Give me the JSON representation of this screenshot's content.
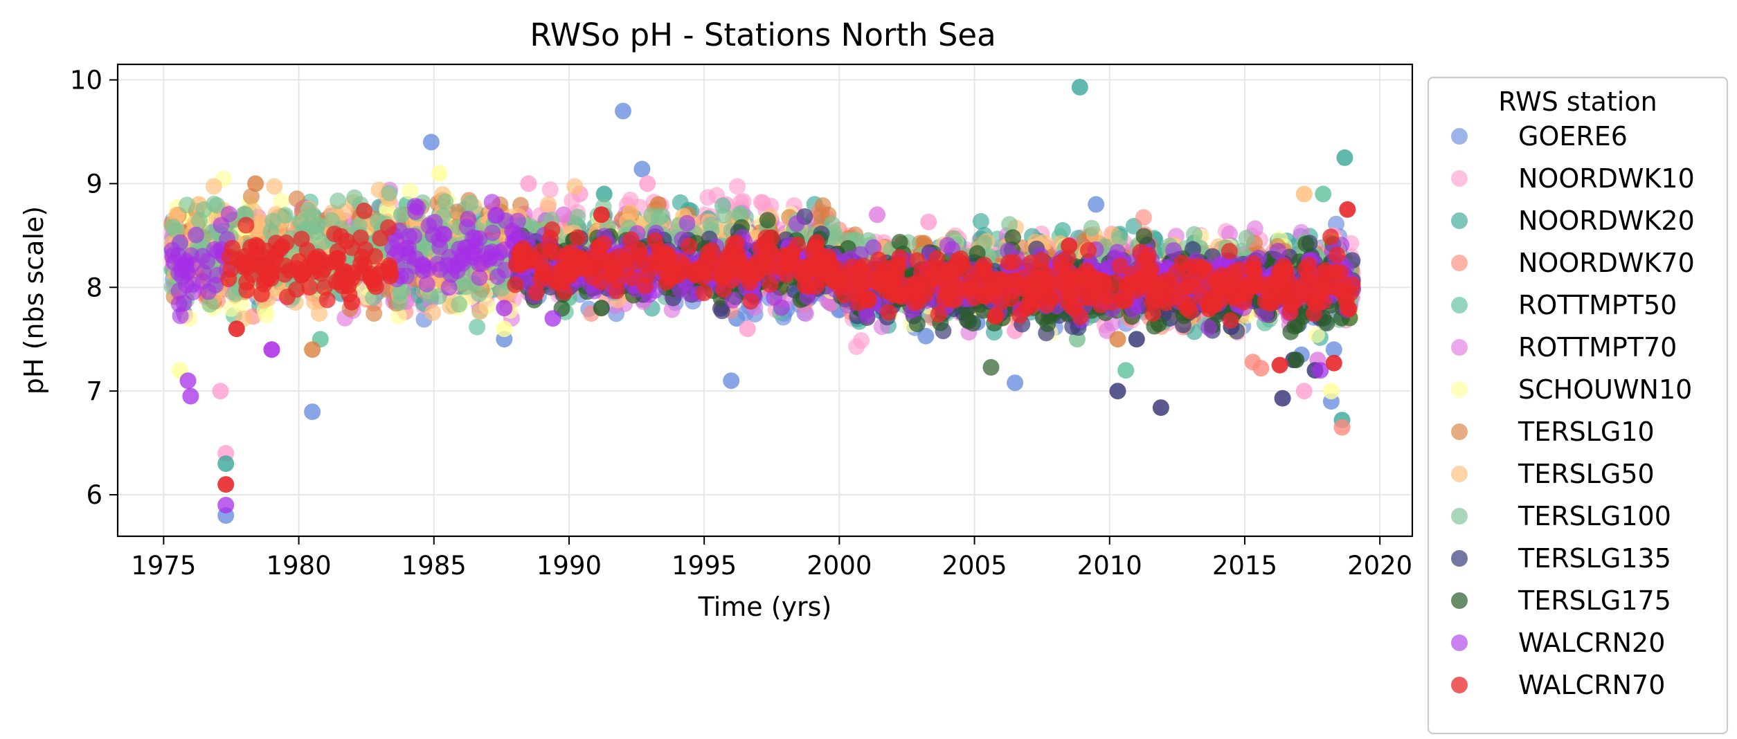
{
  "chart_data": {
    "type": "scatter",
    "title": "RWSo pH - Stations North Sea",
    "xlabel": "Time (yrs)",
    "ylabel": "pH (nbs scale)",
    "xlim": [
      1973.3,
      2021.2
    ],
    "ylim": [
      5.6,
      10.15
    ],
    "xticks": [
      1975,
      1980,
      1985,
      1990,
      1995,
      2000,
      2005,
      2010,
      2015,
      2020
    ],
    "yticks": [
      6,
      7,
      8,
      9,
      10
    ],
    "grid": true,
    "legend": {
      "title": "RWS station",
      "placement": "outside right"
    },
    "series": [
      {
        "name": "GOERE6",
        "color": "#6a8ee0",
        "alpha": 0.65,
        "segments": [
          [
            1975.3,
            1984.5,
            8.25,
            0.15
          ],
          [
            1984.5,
            1996.5,
            8.2,
            0.13
          ],
          [
            1996.5,
            2016.0,
            8.0,
            0.13
          ],
          [
            2016.0,
            2019.0,
            8.05,
            0.2
          ]
        ],
        "outliers": [
          [
            1977.3,
            5.8
          ],
          [
            1980.5,
            6.8
          ],
          [
            1984.9,
            9.4
          ],
          [
            1987.6,
            7.5
          ],
          [
            1992.0,
            9.7
          ],
          [
            1992.7,
            9.14
          ],
          [
            1996.0,
            7.1
          ],
          [
            1996.2,
            7.7
          ],
          [
            2003.2,
            7.53
          ],
          [
            2005.1,
            7.66
          ],
          [
            2006.5,
            7.08
          ],
          [
            2009.5,
            8.8
          ],
          [
            2018.2,
            6.9
          ],
          [
            2018.3,
            7.4
          ],
          [
            2017.1,
            7.35
          ]
        ]
      },
      {
        "name": "NOORDWK10",
        "color": "#ff9fd0",
        "alpha": 0.65,
        "segments": [
          [
            1975.3,
            1988.0,
            8.3,
            0.18
          ],
          [
            1988.0,
            2000.0,
            8.4,
            0.2
          ],
          [
            2000.0,
            2019.0,
            8.1,
            0.18
          ]
        ],
        "outliers": [
          [
            1977.1,
            7.0
          ],
          [
            1977.3,
            6.4
          ],
          [
            1988.5,
            9.0
          ],
          [
            1990.4,
            8.9
          ],
          [
            1992.9,
            9.0
          ],
          [
            1995.8,
            8.8
          ],
          [
            1996.6,
            7.6
          ],
          [
            1998.4,
            8.7
          ],
          [
            2003.3,
            8.63
          ],
          [
            2006.5,
            7.58
          ],
          [
            2017.2,
            7.0
          ],
          [
            2018.3,
            8.5
          ]
        ]
      },
      {
        "name": "NOORDWK20",
        "color": "#3aa89a",
        "alpha": 0.65,
        "segments": [
          [
            1975.3,
            1988.0,
            8.3,
            0.18
          ],
          [
            1988.0,
            2000.0,
            8.3,
            0.18
          ],
          [
            2000.0,
            2019.0,
            8.1,
            0.18
          ]
        ],
        "outliers": [
          [
            1977.3,
            6.3
          ],
          [
            1991.3,
            8.9
          ],
          [
            2008.9,
            9.93
          ],
          [
            2018.6,
            6.72
          ],
          [
            2018.7,
            9.25
          ]
        ]
      },
      {
        "name": "NOORDWK70",
        "color": "#ff8a7e",
        "alpha": 0.65,
        "segments": [
          [
            1975.3,
            1988.0,
            8.2,
            0.17
          ],
          [
            1988.0,
            2000.0,
            8.25,
            0.15
          ],
          [
            2000.0,
            2019.0,
            8.05,
            0.15
          ]
        ],
        "outliers": [
          [
            2015.3,
            7.28
          ],
          [
            2015.6,
            7.22
          ],
          [
            2018.6,
            6.65
          ]
        ]
      },
      {
        "name": "ROTTMPT50",
        "color": "#5bbf9a",
        "alpha": 0.65,
        "segments": [
          [
            1975.3,
            1988.0,
            8.3,
            0.2
          ],
          [
            1988.0,
            2000.0,
            8.3,
            0.15
          ],
          [
            2000.0,
            2019.0,
            8.05,
            0.15
          ]
        ],
        "outliers": [
          [
            1980.8,
            7.5
          ],
          [
            1984.0,
            8.8
          ],
          [
            1990.0,
            7.9
          ],
          [
            2010.6,
            7.2
          ],
          [
            2017.9,
            8.9
          ]
        ]
      },
      {
        "name": "ROTTMPT70",
        "color": "#e07ae0",
        "alpha": 0.65,
        "segments": [
          [
            1975.3,
            1988.0,
            8.25,
            0.2
          ],
          [
            1988.0,
            2000.0,
            8.25,
            0.16
          ],
          [
            2000.0,
            2019.0,
            8.05,
            0.16
          ]
        ],
        "outliers": [
          [
            1979.0,
            7.4
          ],
          [
            1989.8,
            8.7
          ],
          [
            2001.4,
            8.7
          ],
          [
            2017.7,
            7.3
          ]
        ]
      },
      {
        "name": "SCHOUWN10",
        "color": "#ffff99",
        "alpha": 0.65,
        "segments": [
          [
            1975.3,
            1988.0,
            8.3,
            0.22
          ],
          [
            1988.0,
            2000.0,
            8.3,
            0.15
          ],
          [
            2000.0,
            2019.0,
            8.05,
            0.15
          ]
        ],
        "outliers": [
          [
            1975.6,
            7.2
          ],
          [
            1985.2,
            9.1
          ],
          [
            1987.6,
            7.6
          ],
          [
            2018.2,
            7.0
          ]
        ]
      },
      {
        "name": "TERSLG10",
        "color": "#d98040",
        "alpha": 0.65,
        "segments": [
          [
            1975.3,
            1988.0,
            8.35,
            0.2
          ],
          [
            1988.0,
            2000.0,
            8.35,
            0.15
          ],
          [
            2000.0,
            2019.0,
            8.1,
            0.15
          ]
        ],
        "outliers": [
          [
            1978.4,
            9.0
          ],
          [
            1980.5,
            7.4
          ],
          [
            1993.3,
            8.8
          ],
          [
            2010.3,
            7.5
          ]
        ]
      },
      {
        "name": "TERSLG50",
        "color": "#ffbe78",
        "alpha": 0.65,
        "segments": [
          [
            1975.3,
            1988.0,
            8.35,
            0.22
          ],
          [
            1988.0,
            2000.0,
            8.35,
            0.15
          ],
          [
            2000.0,
            2019.0,
            8.1,
            0.15
          ]
        ],
        "outliers": [
          [
            1975.5,
            8.7
          ],
          [
            1976.3,
            8.8
          ],
          [
            2017.2,
            8.9
          ]
        ]
      },
      {
        "name": "TERSLG100",
        "color": "#7cc294",
        "alpha": 0.65,
        "segments": [
          [
            1975.3,
            1988.0,
            8.35,
            0.2
          ],
          [
            1988.0,
            2000.0,
            8.35,
            0.15
          ],
          [
            2000.0,
            2019.0,
            8.1,
            0.15
          ]
        ],
        "outliers": [
          [
            1983.8,
            8.7
          ],
          [
            2008.8,
            7.5
          ]
        ]
      },
      {
        "name": "TERSLG135",
        "color": "#3c3c7c",
        "alpha": 0.7,
        "segments": [
          [
            1988.0,
            2000.0,
            8.2,
            0.13
          ],
          [
            2000.0,
            2019.0,
            8.0,
            0.15
          ]
        ],
        "outliers": [
          [
            2010.3,
            7.0
          ],
          [
            2011.9,
            6.84
          ],
          [
            2011.0,
            7.5
          ],
          [
            2014.5,
            7.62
          ],
          [
            2016.4,
            6.93
          ],
          [
            2017.6,
            7.2
          ],
          [
            2016.8,
            7.3
          ]
        ]
      },
      {
        "name": "TERSLG175",
        "color": "#2a5c2a",
        "alpha": 0.7,
        "segments": [
          [
            1988.0,
            2000.0,
            8.2,
            0.13
          ],
          [
            2000.0,
            2019.0,
            8.0,
            0.15
          ]
        ],
        "outliers": [
          [
            1990.0,
            8.0
          ],
          [
            1991.2,
            7.8
          ],
          [
            1992.4,
            8.0
          ],
          [
            2013.8,
            7.63
          ],
          [
            2016.9,
            7.3
          ]
        ]
      },
      {
        "name": "WALCRN20",
        "color": "#a62ee8",
        "alpha": 0.6,
        "segments": [
          [
            1975.3,
            1977.5,
            8.25,
            0.2
          ],
          [
            1983.4,
            1988.2,
            8.35,
            0.17
          ],
          [
            1988.2,
            2000.0,
            8.2,
            0.13
          ],
          [
            2000.0,
            2019.0,
            8.05,
            0.14
          ]
        ],
        "outliers": [
          [
            1975.9,
            7.1
          ],
          [
            1976.0,
            6.95
          ],
          [
            1977.3,
            5.9
          ],
          [
            1979.0,
            7.4
          ],
          [
            1987.6,
            7.8
          ],
          [
            1989.4,
            7.7
          ],
          [
            2017.8,
            7.2
          ]
        ]
      },
      {
        "name": "WALCRN70",
        "color": "#e8282a",
        "alpha": 0.75,
        "segments": [
          [
            1977.3,
            1983.4,
            8.2,
            0.13
          ],
          [
            1988.0,
            2000.0,
            8.22,
            0.1
          ],
          [
            2000.0,
            2019.0,
            8.03,
            0.12
          ]
        ],
        "outliers": [
          [
            1977.3,
            6.1
          ],
          [
            1977.7,
            7.6
          ],
          [
            1991.2,
            8.7
          ],
          [
            2008.5,
            8.4
          ],
          [
            2016.3,
            7.25
          ],
          [
            2018.3,
            7.27
          ],
          [
            2018.8,
            8.75
          ]
        ]
      }
    ]
  }
}
